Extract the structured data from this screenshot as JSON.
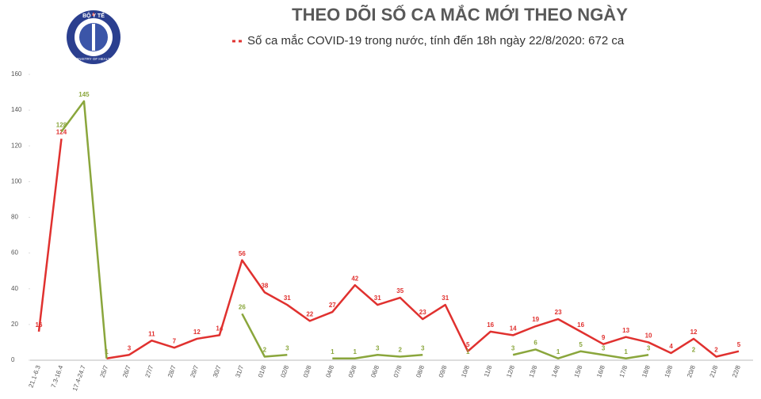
{
  "logo": {
    "top": "BỘ Y TẾ",
    "bottom": "MINISTRY OF HEALTH"
  },
  "chart_data": {
    "type": "line",
    "title": "THEO DÕI SỐ CA MẮC MỚI THEO NGÀY",
    "categories": [
      "21.1-6.3",
      "7.3-16.4",
      "17.4-24.7",
      "25/7",
      "26/7",
      "27/7",
      "28/7",
      "29/7",
      "30/7",
      "31/7",
      "01/8",
      "02/8",
      "03/8",
      "04/8",
      "05/8",
      "06/8",
      "07/8",
      "08/8",
      "09/8",
      "10/8",
      "11/8",
      "12/8",
      "13/8",
      "14/8",
      "15/8",
      "16/8",
      "17/8",
      "18/8",
      "19/8",
      "20/8",
      "21/8",
      "22/8"
    ],
    "series": [
      {
        "name": "Số ca mắc COVID-19 trong nước, tính đến 18h ngày 22/8/2020: 672 ca",
        "color": "#e0312f",
        "values": [
          16,
          124,
          null,
          1,
          3,
          11,
          7,
          12,
          14,
          56,
          38,
          31,
          22,
          27,
          42,
          31,
          35,
          23,
          31,
          5,
          16,
          14,
          19,
          23,
          16,
          9,
          13,
          10,
          4,
          12,
          2,
          5
        ]
      },
      {
        "color": "#8aa63c",
        "values": [
          null,
          128,
          145,
          1,
          null,
          null,
          null,
          null,
          null,
          26,
          2,
          3,
          null,
          1,
          1,
          3,
          2,
          3,
          null,
          1,
          null,
          3,
          6,
          1,
          5,
          3,
          1,
          3,
          null,
          2,
          null,
          null
        ]
      }
    ],
    "ylim": [
      0,
      160
    ],
    "yticks": [
      0,
      20,
      40,
      60,
      80,
      100,
      120,
      140,
      160
    ],
    "grid": false,
    "legend": "top"
  }
}
